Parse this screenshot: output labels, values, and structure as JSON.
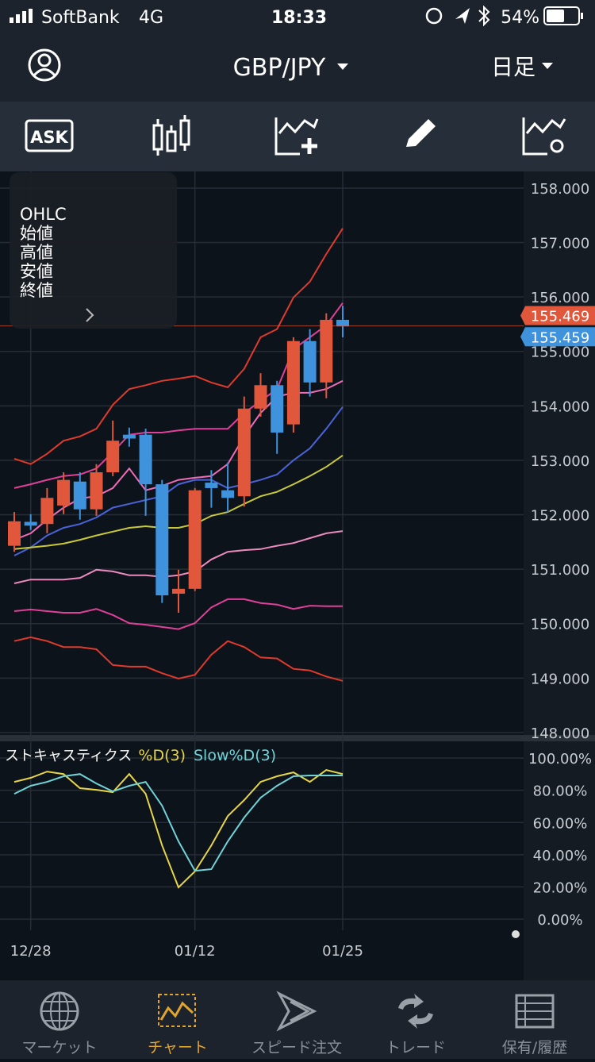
{
  "status_bar": {
    "carrier": "SoftBank",
    "network": "4G",
    "time": "18:33",
    "battery": "54%"
  },
  "header": {
    "symbol": "GBP/JPY",
    "timeframe": "日足"
  },
  "toolbar": {
    "ask": "ASK"
  },
  "ohlc_panel": {
    "title": "OHLC",
    "rows": [
      "始値",
      "高値",
      "安値",
      "終値"
    ]
  },
  "chart_data": [
    {
      "type": "candlestick",
      "categories": [
        null,
        "12/28",
        null,
        null,
        null,
        null,
        null,
        null,
        null,
        null,
        null,
        "01/12",
        null,
        null,
        null,
        null,
        null,
        null,
        null,
        null,
        "01/25"
      ],
      "open": [
        151.43,
        151.87,
        151.83,
        152.17,
        152.61,
        152.1,
        152.78,
        153.47,
        153.47,
        152.56,
        150.55,
        150.64,
        152.59,
        152.45,
        152.34,
        153.95,
        154.38,
        153.66,
        155.19,
        154.43,
        155.58
      ],
      "high": [
        152.05,
        152.01,
        152.49,
        152.78,
        152.78,
        152.93,
        153.73,
        153.6,
        153.58,
        152.64,
        150.99,
        152.49,
        152.82,
        152.96,
        154.17,
        154.6,
        154.46,
        155.26,
        155.41,
        155.7,
        155.84
      ],
      "low": [
        151.32,
        151.72,
        151.66,
        152.01,
        151.91,
        151.98,
        152.71,
        153.25,
        151.98,
        150.38,
        150.2,
        150.6,
        152.13,
        152.05,
        152.15,
        153.8,
        153.12,
        153.51,
        154.17,
        154.14,
        155.26
      ],
      "close": [
        151.88,
        151.8,
        152.31,
        152.64,
        152.1,
        152.78,
        153.36,
        153.4,
        152.56,
        150.52,
        150.64,
        152.45,
        152.49,
        152.31,
        153.95,
        154.38,
        153.51,
        155.19,
        154.43,
        155.58,
        155.46
      ],
      "up_color": "#e0573b",
      "down_color": "#3f93dd",
      "series": [
        {
          "color": "#e03a2c",
          "values": [
            153.03,
            152.93,
            153.12,
            153.36,
            153.44,
            153.58,
            154.02,
            154.31,
            154.38,
            154.46,
            154.5,
            154.55,
            154.43,
            154.34,
            154.68,
            155.26,
            155.41,
            155.99,
            156.28,
            156.79,
            157.26
          ]
        },
        {
          "color": "#e0409a",
          "values": [
            152.49,
            152.56,
            152.64,
            152.71,
            152.74,
            152.85,
            153.15,
            153.47,
            153.51,
            153.51,
            153.55,
            153.58,
            153.58,
            153.58,
            153.87,
            154.09,
            154.31,
            155.04,
            155.26,
            155.48,
            155.89
          ]
        },
        {
          "color": "#f06bb8",
          "values": [
            151.54,
            151.66,
            151.91,
            152.13,
            152.3,
            152.34,
            152.49,
            152.85,
            152.45,
            152.53,
            152.64,
            152.68,
            152.71,
            152.93,
            153.44,
            153.87,
            154.17,
            154.24,
            154.24,
            154.31,
            154.46
          ]
        },
        {
          "color": "#4a63d8",
          "values": [
            151.25,
            151.4,
            151.62,
            151.76,
            151.83,
            151.95,
            152.13,
            152.2,
            152.27,
            152.34,
            152.56,
            152.64,
            152.64,
            152.49,
            152.56,
            152.64,
            152.74,
            153.0,
            153.22,
            153.58,
            153.98
          ]
        },
        {
          "color": "#c9c938",
          "values": [
            151.37,
            151.4,
            151.43,
            151.47,
            151.54,
            151.62,
            151.69,
            151.76,
            151.79,
            151.76,
            151.76,
            151.83,
            151.98,
            152.05,
            152.2,
            152.34,
            152.42,
            152.56,
            152.71,
            152.88,
            153.09
          ]
        },
        {
          "color": "#ec8ac0",
          "values": [
            150.74,
            150.81,
            150.81,
            150.81,
            150.84,
            150.99,
            150.96,
            150.89,
            150.89,
            150.86,
            150.89,
            150.96,
            151.18,
            151.32,
            151.35,
            151.37,
            151.43,
            151.48,
            151.57,
            151.66,
            151.7
          ]
        },
        {
          "color": "#e0409a",
          "values": [
            150.23,
            150.26,
            150.23,
            150.2,
            150.2,
            150.27,
            150.16,
            150.01,
            149.98,
            149.94,
            149.9,
            150.01,
            150.3,
            150.45,
            150.45,
            150.38,
            150.35,
            150.27,
            150.33,
            150.32,
            150.32
          ]
        },
        {
          "color": "#e03a2c",
          "values": [
            149.68,
            149.75,
            149.68,
            149.57,
            149.57,
            149.53,
            149.24,
            149.21,
            149.21,
            149.09,
            148.99,
            149.06,
            149.43,
            149.68,
            149.57,
            149.38,
            149.36,
            149.17,
            149.14,
            149.03,
            148.95
          ]
        }
      ],
      "prices": [
        {
          "value": 155.469,
          "label": "155.469",
          "color": "#e0573b"
        },
        {
          "value": 155.459,
          "label": "155.459",
          "color": "#3f93dd"
        }
      ],
      "ylim": [
        147.97,
        158.32
      ],
      "yticks": [
        {
          "value": 158,
          "label": "158.000"
        },
        {
          "value": 157,
          "label": "157.000"
        },
        {
          "value": 156,
          "label": "156.000"
        },
        {
          "value": 155,
          "label": "155.000"
        },
        {
          "value": 154,
          "label": "154.000"
        },
        {
          "value": 153,
          "label": "153.000"
        },
        {
          "value": 152,
          "label": "152.000"
        },
        {
          "value": 151,
          "label": "151.000"
        },
        {
          "value": 150,
          "label": "150.000"
        },
        {
          "value": 149,
          "label": "149.000"
        },
        {
          "value": 148,
          "label": "148.000"
        }
      ],
      "grid": true
    },
    {
      "type": "line",
      "title": "ストキャスティクス",
      "series": [
        {
          "name": "%D(3)",
          "color": "#e6d547",
          "values": [
            85.2,
            87.7,
            91.6,
            90.1,
            81.3,
            80.3,
            78.8,
            90.1,
            77.8,
            45.8,
            19.7,
            29.6,
            45.8,
            64.0,
            73.9,
            85.2,
            88.7,
            91.1,
            85.2,
            92.6,
            90.1
          ]
        },
        {
          "name": "Slow%D(3)",
          "color": "#6fd3d8",
          "values": [
            77.8,
            82.8,
            85.2,
            88.7,
            90.1,
            84.2,
            79.3,
            82.8,
            85.2,
            70.4,
            48.3,
            30.0,
            31.0,
            48.3,
            63.1,
            75.4,
            82.8,
            88.7,
            89.2,
            89.2,
            89.2
          ]
        }
      ],
      "ylim": [
        -6.9,
        109.9
      ],
      "yticks": [
        {
          "value": 100,
          "label": "100.00%"
        },
        {
          "value": 80,
          "label": "80.00%"
        },
        {
          "value": 60,
          "label": "60.00%"
        },
        {
          "value": 40,
          "label": "40.00%"
        },
        {
          "value": 20,
          "label": "20.00%"
        },
        {
          "value": 0,
          "label": "0.00%"
        }
      ],
      "grid": true
    }
  ],
  "tabs": [
    "マーケット",
    "チャート",
    "スピード注文",
    "トレード",
    "保有/履歴"
  ]
}
